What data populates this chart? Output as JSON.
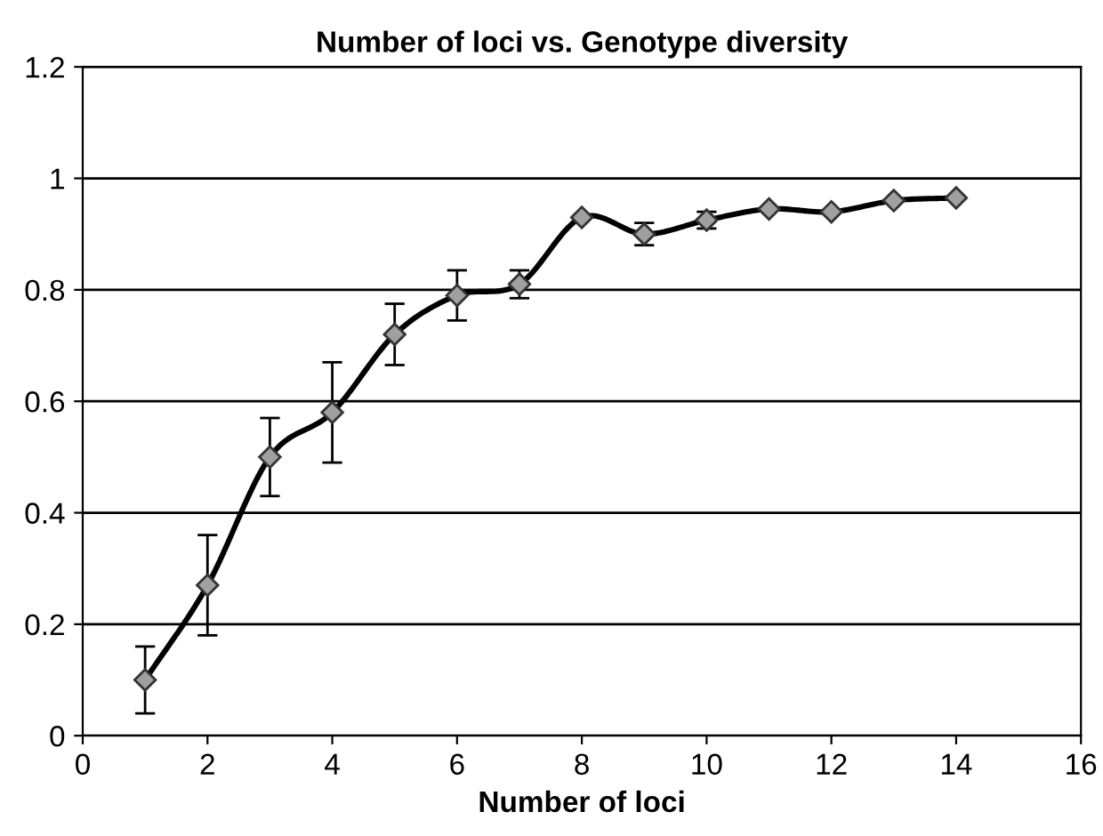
{
  "chart_data": {
    "type": "line",
    "title": "Number of loci vs. Genotype diversity",
    "xlabel": "Number of loci",
    "x": [
      1,
      2,
      3,
      4,
      5,
      6,
      7,
      8,
      9,
      10,
      11,
      12,
      13,
      14
    ],
    "series": [
      {
        "color": "#000000",
        "values": [
          0.1,
          0.27,
          0.5,
          0.58,
          0.72,
          0.79,
          0.81,
          0.93,
          0.9,
          0.925,
          0.945,
          0.94,
          0.96,
          0.965
        ],
        "errors": [
          0.06,
          0.09,
          0.07,
          0.09,
          0.055,
          0.045,
          0.025,
          null,
          0.02,
          0.015,
          null,
          null,
          null,
          null
        ]
      }
    ],
    "xlim": [
      0,
      16
    ],
    "xticks": [
      0,
      2,
      4,
      6,
      8,
      10,
      12,
      14,
      16
    ],
    "ylim": [
      0,
      1.2
    ],
    "yticks": [
      0,
      0.2,
      0.4,
      0.6,
      0.8,
      1,
      1.2
    ],
    "grid": "y",
    "marker": "diamond",
    "line_style": "solid",
    "legend": false
  }
}
